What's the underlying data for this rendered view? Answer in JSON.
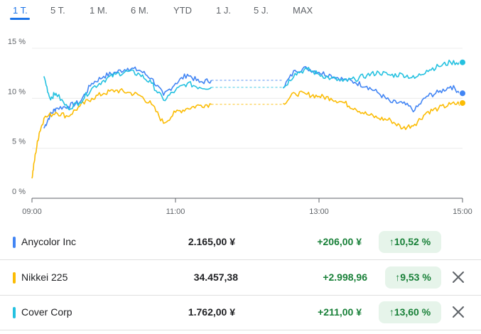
{
  "tabs": [
    {
      "label": "1 T.",
      "active": true
    },
    {
      "label": "5 T.",
      "active": false
    },
    {
      "label": "1 M.",
      "active": false
    },
    {
      "label": "6 M.",
      "active": false
    },
    {
      "label": "YTD",
      "active": false
    },
    {
      "label": "1 J.",
      "active": false
    },
    {
      "label": "5 J.",
      "active": false
    },
    {
      "label": "MAX",
      "active": false
    }
  ],
  "colors": {
    "accent": "#1a73e8",
    "anycolor": "#4285f4",
    "nikkei": "#fbbc04",
    "cover": "#24c1e0",
    "positive": "#188038",
    "positive_bg": "#e6f4ea"
  },
  "chart_data": {
    "type": "line",
    "xlabel": "",
    "ylabel": "",
    "x_ticks": [
      "09:00",
      "11:00",
      "13:00",
      "15:00"
    ],
    "y_ticks": [
      "0 %",
      "5 %",
      "10 %",
      "15 %"
    ],
    "ylim": [
      0,
      15
    ],
    "xlim_hours": [
      9,
      15
    ],
    "grid": true,
    "lunch_break": [
      "11:30",
      "12:30"
    ],
    "series": [
      {
        "name": "Anycolor Inc",
        "color": "#4285f4",
        "points": [
          [
            "09:10",
            7.0
          ],
          [
            "09:15",
            8.3
          ],
          [
            "09:20",
            9.0
          ],
          [
            "09:30",
            9.2
          ],
          [
            "09:40",
            9.6
          ],
          [
            "09:50",
            11.5
          ],
          [
            "10:00",
            12.2
          ],
          [
            "10:10",
            12.6
          ],
          [
            "10:20",
            13.0
          ],
          [
            "10:30",
            12.8
          ],
          [
            "10:40",
            12.0
          ],
          [
            "10:50",
            10.3
          ],
          [
            "11:00",
            11.5
          ],
          [
            "11:10",
            12.4
          ],
          [
            "11:20",
            11.6
          ],
          [
            "11:30",
            11.8
          ],
          [
            "12:30",
            11.1
          ],
          [
            "12:40",
            12.8
          ],
          [
            "12:50",
            13.0
          ],
          [
            "13:00",
            12.6
          ],
          [
            "13:10",
            12.3
          ],
          [
            "13:20",
            11.9
          ],
          [
            "13:30",
            11.6
          ],
          [
            "13:40",
            11.2
          ],
          [
            "13:50",
            10.5
          ],
          [
            "14:00",
            9.6
          ],
          [
            "14:10",
            9.5
          ],
          [
            "14:20",
            8.8
          ],
          [
            "14:30",
            10.2
          ],
          [
            "14:40",
            10.6
          ],
          [
            "14:50",
            11.2
          ],
          [
            "15:00",
            10.5
          ]
        ]
      },
      {
        "name": "Nikkei 225",
        "color": "#fbbc04",
        "points": [
          [
            "09:00",
            2.0
          ],
          [
            "09:03",
            4.5
          ],
          [
            "09:06",
            6.5
          ],
          [
            "09:10",
            8.0
          ],
          [
            "09:20",
            8.6
          ],
          [
            "09:30",
            8.2
          ],
          [
            "09:40",
            9.2
          ],
          [
            "09:50",
            10.0
          ],
          [
            "10:00",
            10.5
          ],
          [
            "10:10",
            10.8
          ],
          [
            "10:20",
            10.6
          ],
          [
            "10:30",
            10.3
          ],
          [
            "10:40",
            9.4
          ],
          [
            "10:50",
            7.5
          ],
          [
            "11:00",
            8.6
          ],
          [
            "11:10",
            9.0
          ],
          [
            "11:20",
            9.3
          ],
          [
            "11:30",
            9.4
          ],
          [
            "12:30",
            9.5
          ],
          [
            "12:40",
            10.5
          ],
          [
            "12:50",
            10.4
          ],
          [
            "13:00",
            10.2
          ],
          [
            "13:10",
            10.0
          ],
          [
            "13:20",
            9.6
          ],
          [
            "13:30",
            9.0
          ],
          [
            "13:40",
            8.4
          ],
          [
            "13:50",
            8.0
          ],
          [
            "14:00",
            7.8
          ],
          [
            "14:10",
            7.0
          ],
          [
            "14:20",
            7.4
          ],
          [
            "14:30",
            8.6
          ],
          [
            "14:40",
            9.0
          ],
          [
            "14:50",
            9.4
          ],
          [
            "15:00",
            9.53
          ]
        ]
      },
      {
        "name": "Cover Corp",
        "color": "#24c1e0",
        "points": [
          [
            "09:10",
            12.2
          ],
          [
            "09:15",
            10.0
          ],
          [
            "09:20",
            10.5
          ],
          [
            "09:30",
            9.0
          ],
          [
            "09:40",
            9.6
          ],
          [
            "09:50",
            11.0
          ],
          [
            "10:00",
            11.8
          ],
          [
            "10:10",
            12.4
          ],
          [
            "10:20",
            12.7
          ],
          [
            "10:30",
            12.4
          ],
          [
            "10:40",
            11.5
          ],
          [
            "10:50",
            9.8
          ],
          [
            "11:00",
            10.8
          ],
          [
            "11:10",
            11.5
          ],
          [
            "11:20",
            11.1
          ],
          [
            "11:30",
            11.1
          ],
          [
            "12:30",
            11.0
          ],
          [
            "12:40",
            12.5
          ],
          [
            "12:50",
            12.9
          ],
          [
            "13:00",
            12.4
          ],
          [
            "13:10",
            12.0
          ],
          [
            "13:20",
            11.7
          ],
          [
            "13:30",
            11.9
          ],
          [
            "13:40",
            12.3
          ],
          [
            "13:50",
            12.6
          ],
          [
            "14:00",
            12.3
          ],
          [
            "14:10",
            12.4
          ],
          [
            "14:20",
            12.0
          ],
          [
            "14:30",
            12.8
          ],
          [
            "14:40",
            13.2
          ],
          [
            "14:50",
            13.6
          ],
          [
            "15:00",
            13.6
          ]
        ]
      }
    ]
  },
  "rows": [
    {
      "name": "Anycolor Inc",
      "price": "2.165,00 ¥",
      "change": "+206,00 ¥",
      "pct": "10,52 %",
      "color": "#4285f4",
      "removable": false
    },
    {
      "name": "Nikkei 225",
      "price": "34.457,38",
      "change": "+2.998,96",
      "pct": "9,53 %",
      "color": "#fbbc04",
      "removable": true
    },
    {
      "name": "Cover Corp",
      "price": "1.762,00 ¥",
      "change": "+211,00 ¥",
      "pct": "13,60 %",
      "color": "#24c1e0",
      "removable": true
    }
  ],
  "icons": {
    "up": "arrow-up-icon",
    "close": "close-icon"
  },
  "symbols": {
    "up_arrow": "↑"
  }
}
